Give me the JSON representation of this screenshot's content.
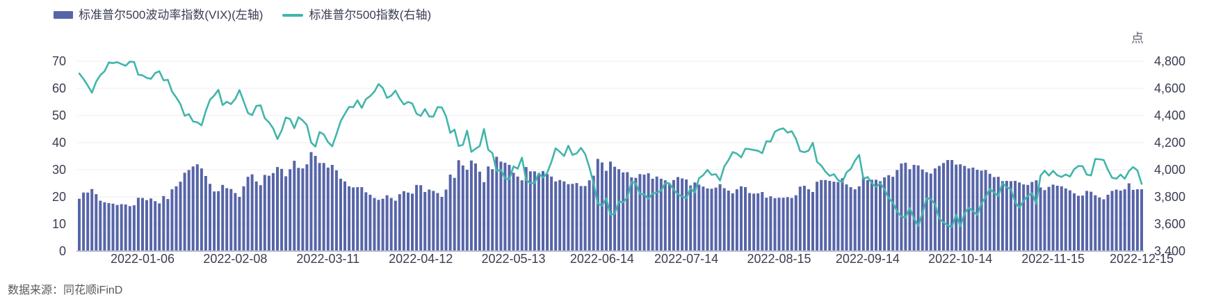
{
  "legend": {
    "items": [
      {
        "label": "标准普尔500波动率指数(VIX)(左轴)"
      },
      {
        "label": "标准普尔500指数(右轴)"
      }
    ]
  },
  "footer": {
    "source": "数据来源：同花顺iFinD"
  },
  "chart_data": {
    "type": "combo",
    "title": "",
    "grid": true,
    "legend_position": "top-left",
    "left_axis": {
      "range": [
        0,
        70
      ],
      "ticks": [
        0,
        10,
        20,
        30,
        40,
        50,
        60,
        70
      ]
    },
    "right_axis": {
      "range": [
        3400,
        4800
      ],
      "ticks": [
        "3,400",
        "3,600",
        "3,800",
        "4,000",
        "4,200",
        "4,400",
        "4,600",
        "4,800"
      ],
      "unit": "点"
    },
    "x_axis": {
      "n_points": 253,
      "tick_labels": [
        "2022-01-06",
        "2022-02-08",
        "2022-03-11",
        "2022-04-12",
        "2022-05-13",
        "2022-06-14",
        "2022-07-14",
        "2022-08-15",
        "2022-09-14",
        "2022-10-14",
        "2022-11-15",
        "2022-12-15"
      ],
      "tick_indices": [
        15,
        37,
        59,
        81,
        103,
        124,
        144,
        166,
        187,
        209,
        231,
        252
      ]
    },
    "series": [
      {
        "name": "标准普尔500波动率指数(VIX)(左轴)",
        "type": "bar",
        "y_axis": "left",
        "color": "#5765a8",
        "values": [
          19.3,
          21.6,
          21.6,
          22.9,
          21.0,
          18.6,
          18.0,
          17.7,
          17.5,
          17.0,
          17.3,
          17.2,
          16.6,
          16.9,
          19.7,
          19.6,
          18.8,
          19.4,
          18.4,
          17.6,
          20.3,
          19.2,
          22.8,
          23.9,
          25.6,
          28.9,
          29.9,
          31.2,
          32.0,
          30.5,
          27.7,
          24.8,
          22.0,
          22.1,
          24.4,
          23.2,
          22.9,
          21.4,
          20.0,
          23.9,
          27.4,
          28.3,
          25.7,
          24.3,
          28.1,
          27.8,
          28.8,
          31.0,
          30.3,
          27.6,
          30.2,
          33.3,
          30.7,
          30.5,
          32.0,
          36.5,
          35.1,
          32.5,
          32.5,
          30.8,
          31.8,
          29.8,
          26.7,
          25.7,
          23.9,
          23.5,
          23.6,
          23.6,
          21.7,
          20.8,
          19.6,
          18.9,
          19.3,
          20.6,
          19.6,
          18.6,
          21.0,
          22.1,
          21.6,
          21.2,
          24.4,
          24.3,
          21.8,
          22.7,
          22.2,
          21.4,
          20.0,
          22.7,
          28.2,
          27.0,
          33.5,
          31.6,
          30.0,
          33.4,
          32.3,
          29.3,
          25.4,
          31.2,
          30.2,
          34.8,
          33.0,
          32.6,
          31.8,
          28.9,
          27.5,
          26.1,
          31.0,
          29.4,
          29.4,
          28.5,
          29.5,
          28.4,
          27.5,
          25.7,
          26.2,
          25.7,
          24.7,
          24.8,
          25.1,
          24.0,
          24.0,
          26.1,
          27.8,
          34.0,
          32.7,
          29.6,
          33.0,
          31.1,
          30.2,
          29.0,
          29.1,
          27.2,
          27.0,
          28.4,
          28.2,
          28.7,
          26.7,
          27.5,
          26.7,
          26.1,
          24.6,
          26.2,
          27.3,
          26.8,
          26.4,
          24.2,
          25.3,
          24.5,
          23.8,
          23.1,
          23.0,
          23.4,
          24.7,
          23.2,
          22.3,
          21.3,
          22.8,
          23.9,
          23.6,
          21.4,
          21.2,
          21.3,
          21.8,
          19.7,
          20.2,
          19.5,
          19.7,
          19.7,
          19.9,
          19.6,
          20.6,
          23.8,
          24.1,
          22.8,
          21.8,
          25.6,
          26.2,
          26.2,
          25.9,
          25.6,
          25.5,
          26.9,
          24.6,
          23.6,
          22.8,
          23.9,
          27.3,
          26.2,
          26.3,
          26.3,
          25.8,
          27.2,
          28.0,
          27.4,
          29.9,
          32.3,
          32.6,
          30.2,
          31.8,
          31.6,
          30.1,
          29.1,
          28.6,
          30.5,
          31.4,
          32.5,
          33.6,
          33.6,
          31.9,
          32.0,
          31.4,
          30.5,
          30.8,
          30.0,
          29.7,
          29.9,
          28.5,
          27.3,
          27.4,
          25.8,
          25.9,
          25.8,
          25.9,
          25.3,
          24.6,
          24.4,
          25.5,
          26.1,
          23.5,
          22.5,
          23.7,
          24.5,
          24.1,
          23.9,
          23.1,
          22.4,
          21.3,
          20.4,
          20.5,
          22.2,
          21.9,
          20.6,
          19.8,
          19.1,
          20.8,
          22.2,
          22.7,
          22.3,
          22.8,
          25.0,
          22.6,
          22.8,
          22.8
        ]
      },
      {
        "name": "标准普尔500指数(右轴)",
        "type": "line",
        "y_axis": "right",
        "color": "#41b5aa",
        "values": [
          4710,
          4669,
          4621,
          4568,
          4649,
          4697,
          4726,
          4791,
          4786,
          4793,
          4779,
          4766,
          4797,
          4794,
          4701,
          4696,
          4677,
          4670,
          4713,
          4726,
          4659,
          4663,
          4577,
          4533,
          4483,
          4398,
          4410,
          4356,
          4350,
          4327,
          4432,
          4516,
          4547,
          4589,
          4477,
          4501,
          4484,
          4522,
          4587,
          4504,
          4419,
          4402,
          4471,
          4475,
          4380,
          4349,
          4305,
          4226,
          4289,
          4385,
          4374,
          4306,
          4387,
          4363,
          4329,
          4201,
          4171,
          4278,
          4260,
          4204,
          4173,
          4262,
          4358,
          4412,
          4463,
          4461,
          4512,
          4456,
          4520,
          4543,
          4576,
          4632,
          4602,
          4530,
          4546,
          4583,
          4525,
          4481,
          4500,
          4488,
          4413,
          4397,
          4447,
          4393,
          4392,
          4462,
          4459,
          4394,
          4272,
          4296,
          4175,
          4184,
          4288,
          4132,
          4155,
          4175,
          4300,
          4147,
          4123,
          3991,
          4001,
          3935,
          3930,
          4024,
          4008,
          4089,
          3924,
          3901,
          3901,
          3974,
          3941,
          3979,
          4058,
          4158,
          4132,
          4101,
          4177,
          4109,
          4121,
          4161,
          4116,
          4018,
          3901,
          3750,
          3735,
          3790,
          3667,
          3675,
          3765,
          3760,
          3796,
          3912,
          3900,
          3822,
          3819,
          3785,
          3825,
          3831,
          3845,
          3903,
          3899,
          3854,
          3819,
          3802,
          3790,
          3863,
          3831,
          3937,
          3960,
          3999,
          3962,
          3967,
          3921,
          4024,
          4072,
          4130,
          4119,
          4091,
          4155,
          4152,
          4145,
          4140,
          4122,
          4210,
          4207,
          4280,
          4297,
          4305,
          4274,
          4284,
          4228,
          4138,
          4129,
          4141,
          4199,
          4058,
          4031,
          3986,
          3955,
          3967,
          3924,
          3908,
          3980,
          4006,
          4067,
          4110,
          3933,
          3946,
          3901,
          3873,
          3900,
          3856,
          3790,
          3758,
          3693,
          3655,
          3647,
          3719,
          3640,
          3586,
          3678,
          3791,
          3783,
          3745,
          3640,
          3612,
          3589,
          3577,
          3670,
          3583,
          3678,
          3720,
          3695,
          3666,
          3753,
          3797,
          3859,
          3831,
          3807,
          3901,
          3872,
          3856,
          3760,
          3720,
          3771,
          3807,
          3828,
          3749,
          3956,
          3993,
          3957,
          3992,
          3959,
          3947,
          3965,
          3950,
          4004,
          4027,
          4026,
          3964,
          3958,
          4080,
          4077,
          4072,
          3999,
          3941,
          3934,
          3964,
          3934,
          3991,
          4020,
          3995,
          3896
        ]
      }
    ]
  }
}
